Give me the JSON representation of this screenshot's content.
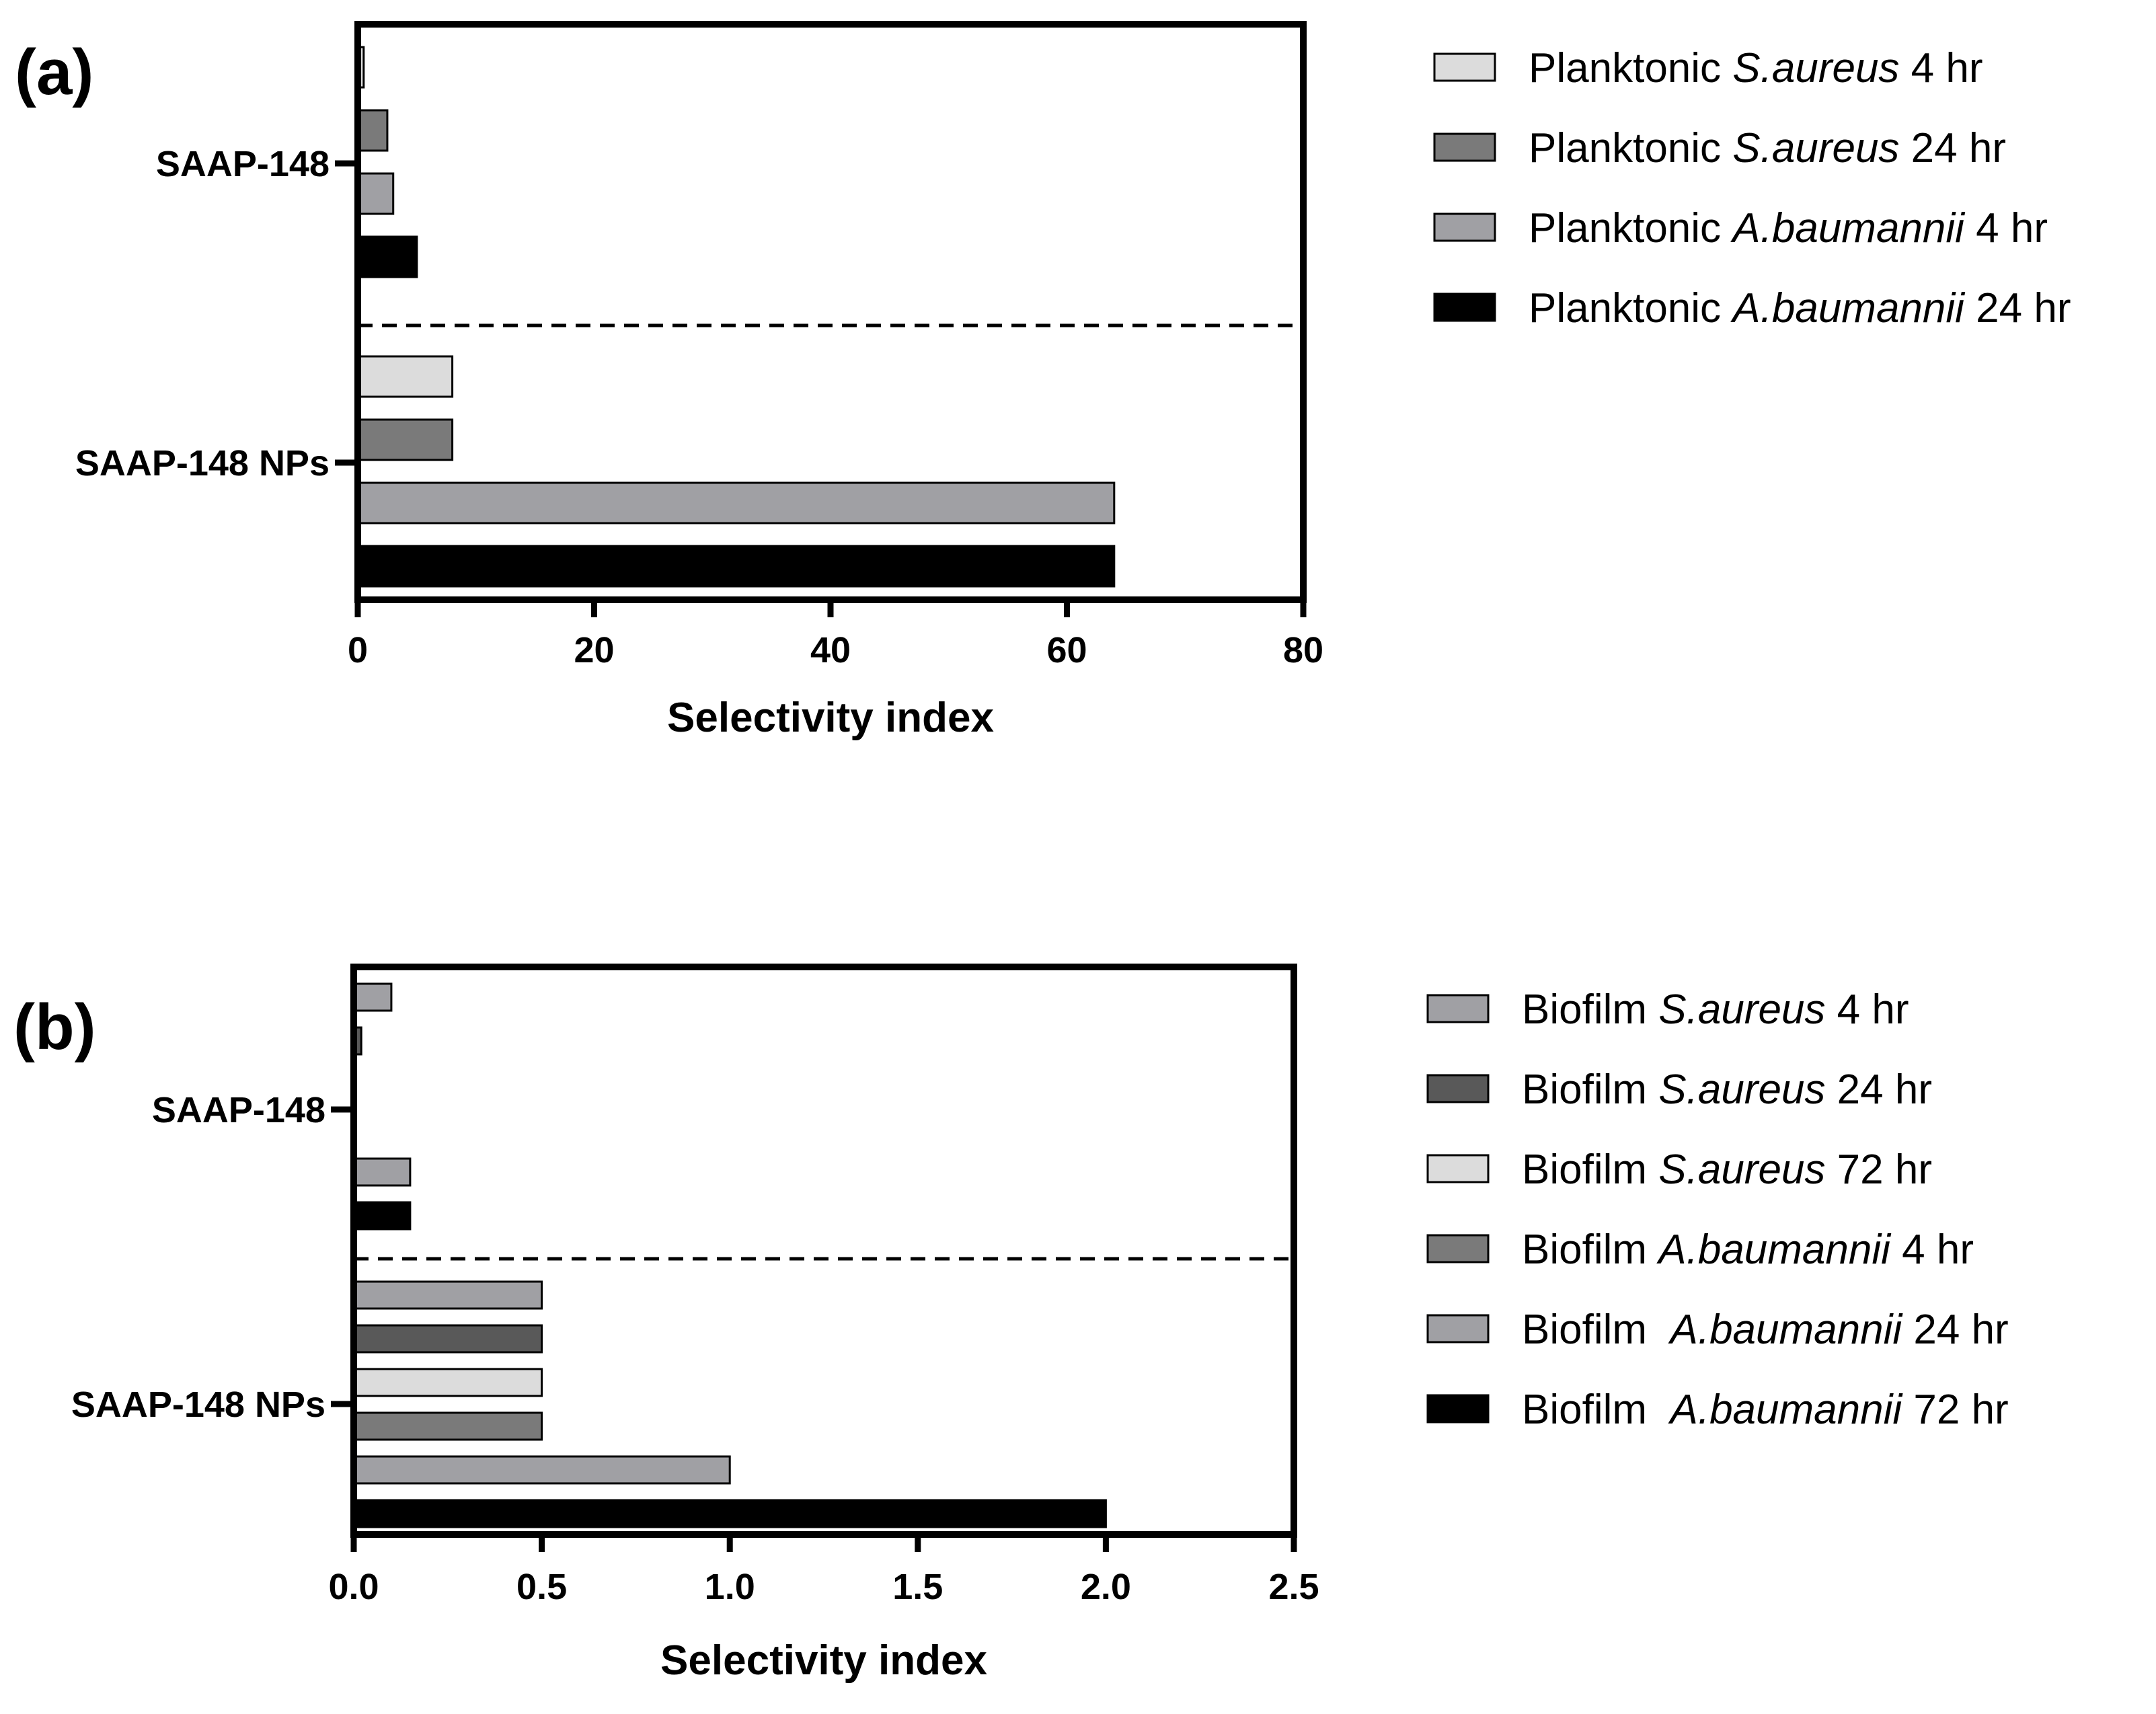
{
  "chart_data": [
    {
      "type": "bar",
      "orientation": "horizontal",
      "panel_label": "(a)",
      "categories": [
        "SAAP-148",
        "SAAP-148 NPs"
      ],
      "series": [
        {
          "name_pre": "Planktonic ",
          "name_italic": "S.aureus",
          "name_post": " 4 hr",
          "color": "#dcdcdc",
          "values": [
            0.5,
            8
          ]
        },
        {
          "name_pre": "Planktonic ",
          "name_italic": "S.aureus",
          "name_post": " 24 hr",
          "color": "#7a7a7a",
          "values": [
            2.5,
            8
          ]
        },
        {
          "name_pre": "Planktonic ",
          "name_italic": "A.baumannii",
          "name_post": " 4 hr",
          "color": "#a0a0a4",
          "values": [
            3,
            64
          ]
        },
        {
          "name_pre": "Planktonic ",
          "name_italic": "A.baumannii",
          "name_post": " 24 hr",
          "color": "#000000",
          "values": [
            5,
            64
          ]
        }
      ],
      "xlabel": "Selectivity index",
      "xlim": [
        0,
        80
      ],
      "xticks": [
        "0",
        "20",
        "40",
        "60",
        "80"
      ],
      "legend_position": "right"
    },
    {
      "type": "bar",
      "orientation": "horizontal",
      "panel_label": "(b)",
      "categories": [
        "SAAP-148",
        "SAAP-148 NPs"
      ],
      "series": [
        {
          "name_pre": "Biofilm ",
          "name_italic": "S.aureus",
          "name_post": " 4 hr",
          "color": "#a0a0a4",
          "values": [
            0.1,
            0.5
          ]
        },
        {
          "name_pre": "Biofilm ",
          "name_italic": "S.aureus",
          "name_post": " 24 hr",
          "color": "#595959",
          "values": [
            0.02,
            0.5
          ]
        },
        {
          "name_pre": "Biofilm ",
          "name_italic": "S.aureus",
          "name_post": " 72 hr",
          "color": "#dcdcdc",
          "values": [
            0,
            0.5
          ]
        },
        {
          "name_pre": "Biofilm ",
          "name_italic": "A.baumannii",
          "name_post": " 4 hr",
          "color": "#7a7a7a",
          "values": [
            0,
            0.5
          ]
        },
        {
          "name_pre": "Biofilm  ",
          "name_italic": "A.baumannii",
          "name_post": " 24 hr",
          "color": "#a0a0a4",
          "values": [
            0.15,
            1
          ]
        },
        {
          "name_pre": "Biofilm  ",
          "name_italic": "A.baumannii",
          "name_post": " 72 hr",
          "color": "#000000",
          "values": [
            0.15,
            2
          ]
        }
      ],
      "xlabel": "Selectivity index",
      "xlim": [
        0,
        2.5
      ],
      "xticks": [
        "0.0",
        "0.5",
        "1.0",
        "1.5",
        "2.0",
        "2.5"
      ],
      "legend_position": "right"
    }
  ]
}
